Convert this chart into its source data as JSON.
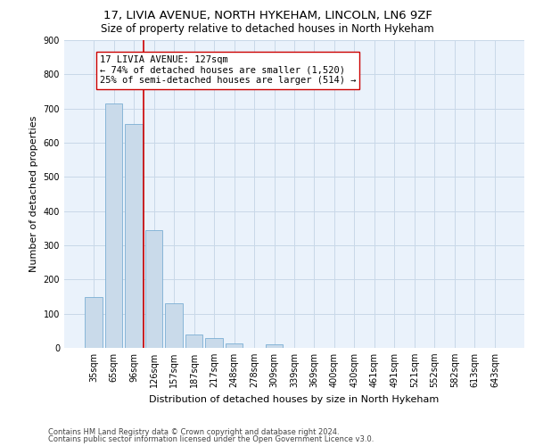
{
  "title1": "17, LIVIA AVENUE, NORTH HYKEHAM, LINCOLN, LN6 9ZF",
  "title2": "Size of property relative to detached houses in North Hykeham",
  "xlabel": "Distribution of detached houses by size in North Hykeham",
  "ylabel": "Number of detached properties",
  "categories": [
    "35sqm",
    "65sqm",
    "96sqm",
    "126sqm",
    "157sqm",
    "187sqm",
    "217sqm",
    "248sqm",
    "278sqm",
    "309sqm",
    "339sqm",
    "369sqm",
    "400sqm",
    "430sqm",
    "461sqm",
    "491sqm",
    "521sqm",
    "552sqm",
    "582sqm",
    "613sqm",
    "643sqm"
  ],
  "values": [
    150,
    715,
    655,
    345,
    130,
    40,
    30,
    12,
    0,
    10,
    0,
    0,
    0,
    0,
    0,
    0,
    0,
    0,
    0,
    0,
    0
  ],
  "bar_color": "#c9daea",
  "bar_edge_color": "#7bafd4",
  "vline_color": "#cc0000",
  "annotation_line1": "17 LIVIA AVENUE: 127sqm",
  "annotation_line2": "← 74% of detached houses are smaller (1,520)",
  "annotation_line3": "25% of semi-detached houses are larger (514) →",
  "annotation_box_color": "#ffffff",
  "annotation_box_edge": "#cc0000",
  "ylim": [
    0,
    900
  ],
  "yticks": [
    0,
    100,
    200,
    300,
    400,
    500,
    600,
    700,
    800,
    900
  ],
  "grid_color": "#c8d8e8",
  "background_color": "#eaf2fb",
  "footer1": "Contains HM Land Registry data © Crown copyright and database right 2024.",
  "footer2": "Contains public sector information licensed under the Open Government Licence v3.0.",
  "title1_fontsize": 9.5,
  "title2_fontsize": 8.5,
  "xlabel_fontsize": 8,
  "ylabel_fontsize": 8,
  "tick_fontsize": 7,
  "annotation_fontsize": 7.5,
  "footer_fontsize": 6
}
